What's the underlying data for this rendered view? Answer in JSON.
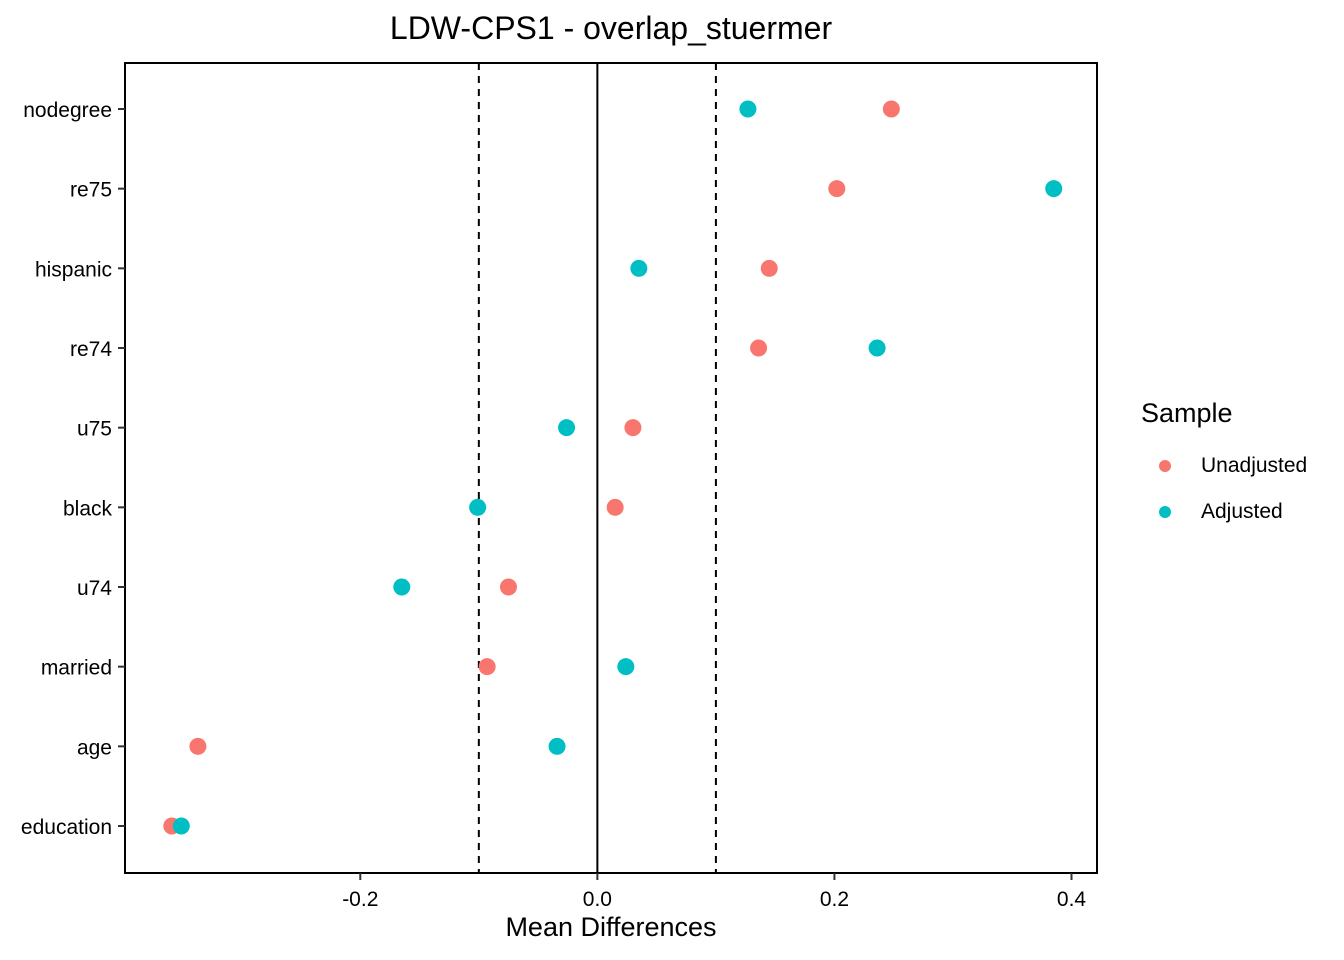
{
  "chart_data": {
    "type": "scatter",
    "title": "LDW-CPS1 - overlap_stuermer",
    "xlabel": "Mean Differences",
    "ylabel": "",
    "xlim": [
      -0.3985,
      0.4215
    ],
    "xticks": [
      -0.2,
      0.0,
      0.2,
      0.4
    ],
    "xtick_labels": [
      "-0.2",
      "0.0",
      "0.2",
      "0.4"
    ],
    "reference_lines": [
      {
        "x": 0.0,
        "style": "solid"
      },
      {
        "x": -0.1,
        "style": "dashed"
      },
      {
        "x": 0.1,
        "style": "dashed"
      }
    ],
    "categories": [
      "nodegree",
      "re75",
      "hispanic",
      "re74",
      "u75",
      "black",
      "u74",
      "married",
      "age",
      "education"
    ],
    "series": [
      {
        "name": "Unadjusted",
        "color": "#F8766D",
        "values": [
          0.248,
          0.202,
          0.145,
          0.136,
          0.03,
          0.015,
          -0.075,
          -0.093,
          -0.337,
          -0.359
        ]
      },
      {
        "name": "Adjusted",
        "color": "#00BFC4",
        "values": [
          0.127,
          0.385,
          0.035,
          0.236,
          -0.026,
          -0.101,
          -0.165,
          0.024,
          -0.034,
          -0.351
        ]
      }
    ],
    "grid": false,
    "legend": {
      "title": "Sample",
      "position": "right"
    }
  }
}
